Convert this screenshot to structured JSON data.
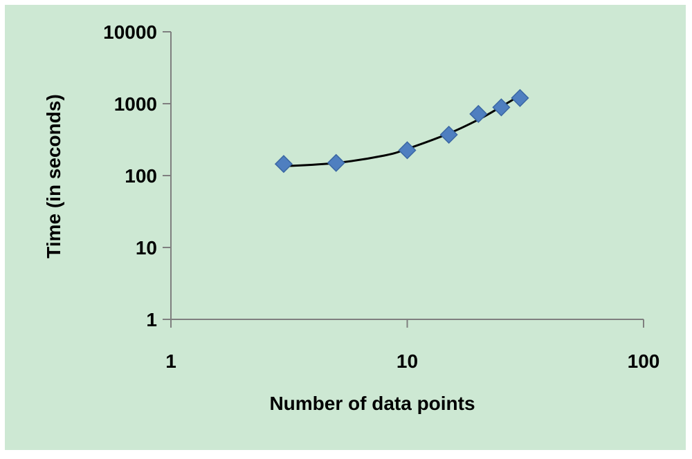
{
  "chart_data": {
    "type": "scatter",
    "title": "",
    "xlabel": "Number of data points",
    "ylabel": "Time (in seconds)",
    "xscale": "log",
    "yscale": "log",
    "xlim": [
      1,
      100
    ],
    "ylim": [
      1,
      10000
    ],
    "x_ticks": [
      "1",
      "10",
      "100"
    ],
    "y_ticks": [
      "1",
      "10",
      "100",
      "1000",
      "10000"
    ],
    "grid": false,
    "legend": "none",
    "series": [
      {
        "marker": "diamond",
        "x": [
          3,
          5,
          10,
          15,
          20,
          25,
          30
        ],
        "y": [
          145,
          150,
          225,
          370,
          720,
          890,
          1200
        ]
      }
    ],
    "trendline": {
      "type": "smooth-curve",
      "x": [
        3,
        5,
        8,
        10,
        15,
        20,
        25,
        30
      ],
      "y": [
        135,
        150,
        190,
        235,
        385,
        600,
        910,
        1300
      ]
    },
    "colors": {
      "background": "#cde8d3",
      "marker": "#4f7fc0",
      "marker_edge": "#3a67a3",
      "trendline": "#000000",
      "axis": "#7f7f7f",
      "page": "#ffffff"
    }
  }
}
